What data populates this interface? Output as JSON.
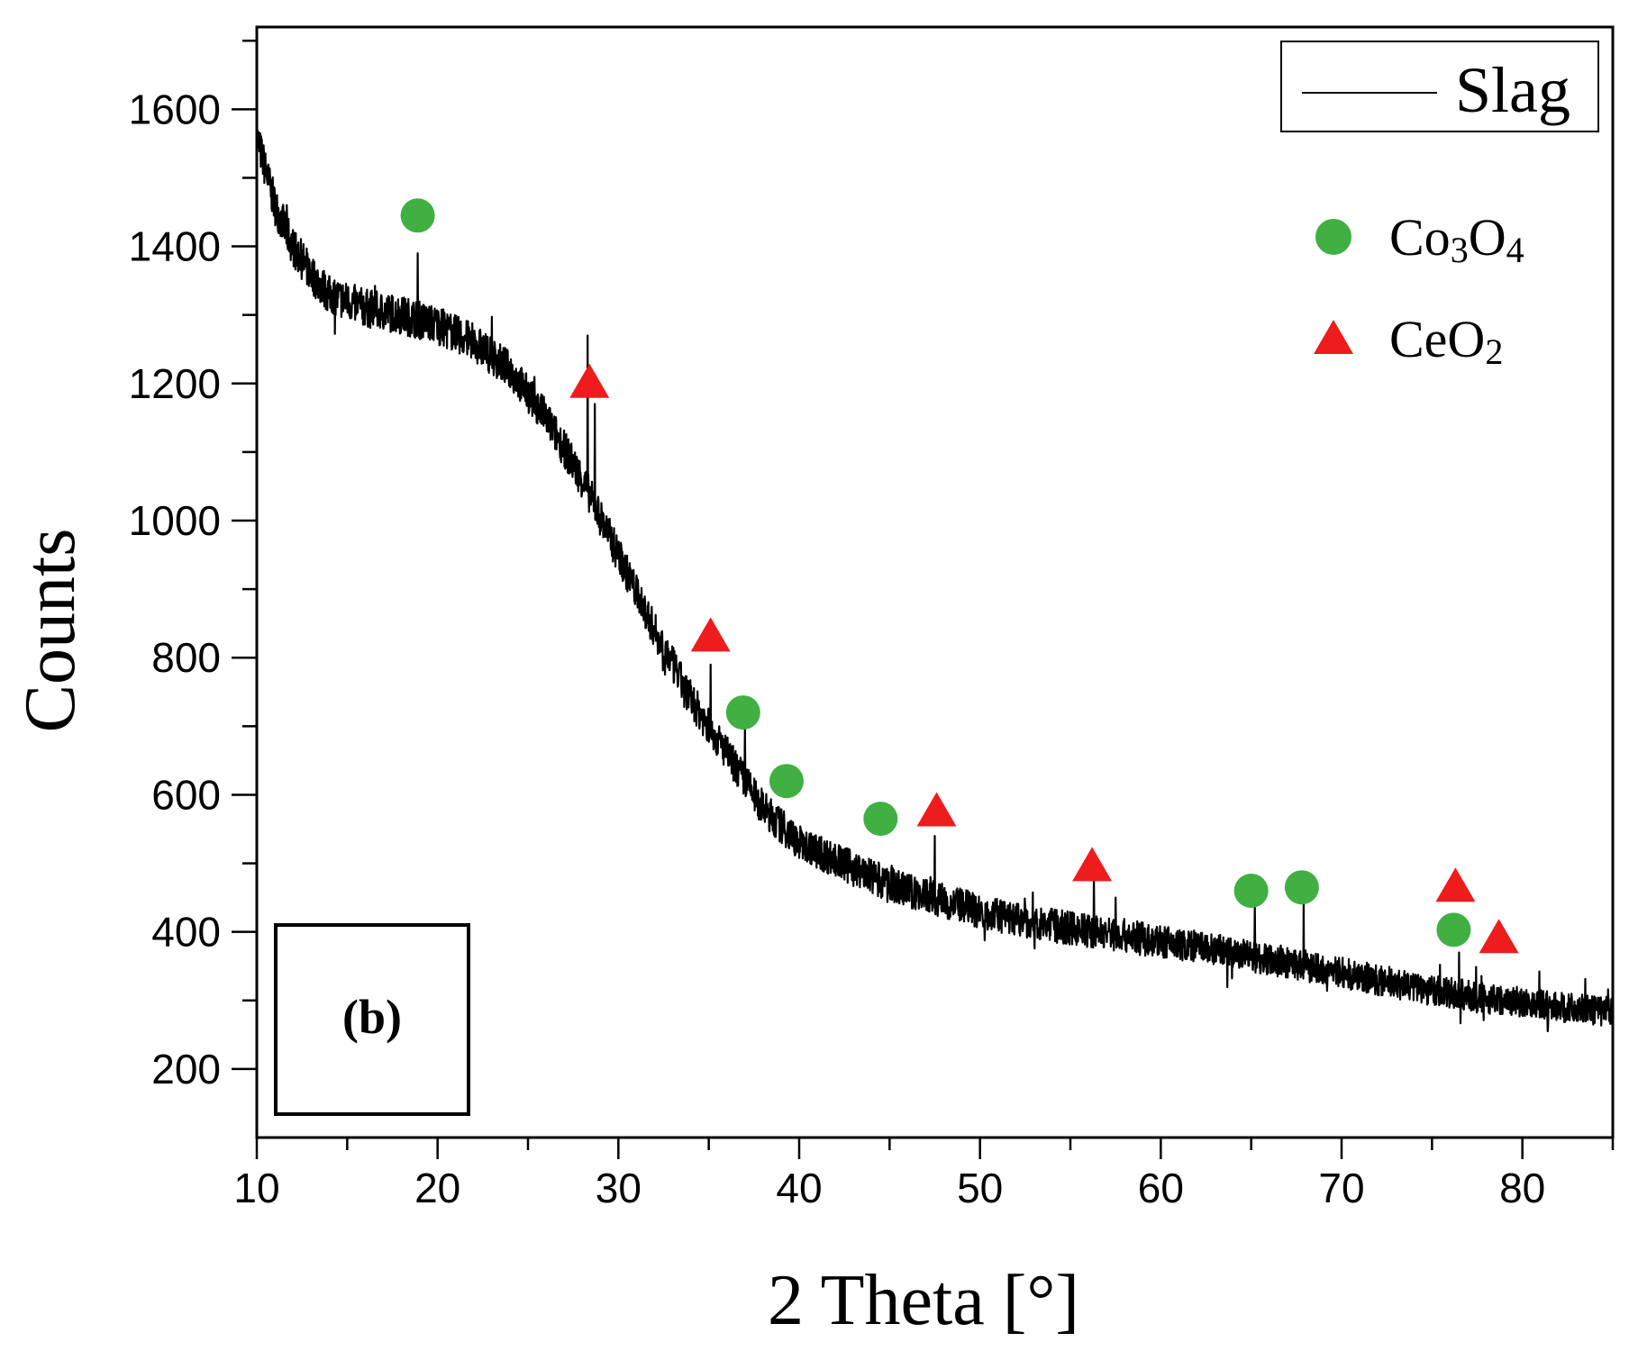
{
  "chart_data": {
    "type": "line",
    "xlabel": "2 Theta [°]",
    "ylabel": "Counts",
    "xlim": [
      10,
      85
    ],
    "ylim": [
      100,
      1720
    ],
    "x_ticks": [
      10,
      20,
      30,
      40,
      50,
      60,
      70,
      80
    ],
    "y_ticks": [
      200,
      400,
      600,
      800,
      1000,
      1200,
      1400,
      1600
    ],
    "panel_label": "(b)",
    "colors": {
      "line": "#000000",
      "co3o4": "#3fb041",
      "ceo2": "#ee1c1c"
    },
    "series": [
      {
        "name": "Slag",
        "kind": "line",
        "baseline": [
          [
            10,
            1560
          ],
          [
            11,
            1460
          ],
          [
            12,
            1400
          ],
          [
            13,
            1360
          ],
          [
            14,
            1330
          ],
          [
            16,
            1310
          ],
          [
            18,
            1300
          ],
          [
            20,
            1285
          ],
          [
            22,
            1260
          ],
          [
            24,
            1220
          ],
          [
            26,
            1150
          ],
          [
            28,
            1060
          ],
          [
            30,
            950
          ],
          [
            32,
            840
          ],
          [
            34,
            740
          ],
          [
            36,
            660
          ],
          [
            38,
            580
          ],
          [
            40,
            530
          ],
          [
            42,
            505
          ],
          [
            44,
            480
          ],
          [
            46,
            460
          ],
          [
            48,
            445
          ],
          [
            50,
            430
          ],
          [
            52,
            418
          ],
          [
            55,
            405
          ],
          [
            58,
            395
          ],
          [
            60,
            385
          ],
          [
            62,
            378
          ],
          [
            65,
            365
          ],
          [
            68,
            350
          ],
          [
            70,
            340
          ],
          [
            72,
            330
          ],
          [
            75,
            315
          ],
          [
            78,
            303
          ],
          [
            80,
            298
          ],
          [
            82,
            290
          ],
          [
            85,
            283
          ]
        ],
        "peaks": [
          [
            18.9,
            1390
          ],
          [
            28.3,
            1270
          ],
          [
            28.7,
            1170
          ],
          [
            35.1,
            790
          ],
          [
            37.0,
            700
          ],
          [
            47.5,
            540
          ],
          [
            56.3,
            480
          ],
          [
            57.5,
            450
          ],
          [
            65.2,
            440
          ],
          [
            67.9,
            450
          ],
          [
            76.5,
            370
          ]
        ]
      }
    ],
    "markers": [
      {
        "name": "Co3O4",
        "shape": "circle",
        "points": [
          [
            18.9,
            1445
          ],
          [
            36.9,
            720
          ],
          [
            39.3,
            620
          ],
          [
            44.5,
            565
          ],
          [
            65.0,
            460
          ],
          [
            67.8,
            465
          ],
          [
            76.2,
            403
          ]
        ]
      },
      {
        "name": "CeO2",
        "shape": "triangle",
        "points": [
          [
            28.4,
            1200
          ],
          [
            35.1,
            830
          ],
          [
            47.6,
            575
          ],
          [
            56.2,
            495
          ],
          [
            76.3,
            465
          ],
          [
            78.7,
            390
          ]
        ]
      }
    ],
    "legend": {
      "line_label": "Slag",
      "co3o4": {
        "base": "Co",
        "sub1": "3",
        "mid": "O",
        "sub2": "4"
      },
      "ceo2": {
        "base": "CeO",
        "sub": "2"
      }
    }
  }
}
